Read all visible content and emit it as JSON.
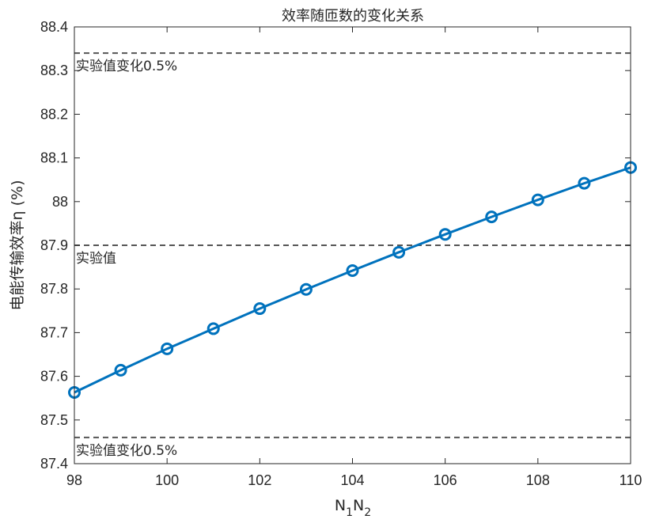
{
  "chart_data": {
    "type": "line",
    "title": "效率随匝数的变化关系",
    "xlabel": "N",
    "xlabel_subscripts": [
      "1",
      "2"
    ],
    "ylabel": "电能传输效率η (%)",
    "xlim": [
      98,
      110
    ],
    "ylim": [
      87.4,
      88.4
    ],
    "x_ticks": [
      98,
      100,
      102,
      104,
      106,
      108,
      110
    ],
    "x_tick_labels": [
      "98",
      "100",
      "102",
      "104",
      "106",
      "108",
      "110"
    ],
    "y_ticks": [
      87.4,
      87.5,
      87.6,
      87.7,
      87.8,
      87.9,
      88,
      88.1,
      88.2,
      88.3,
      88.4
    ],
    "y_tick_labels": [
      "87.4",
      "87.5",
      "87.6",
      "87.7",
      "87.8",
      "87.9",
      "88",
      "88.1",
      "88.2",
      "88.3",
      "88.4"
    ],
    "grid": false,
    "series": [
      {
        "color": "#0072BD",
        "marker": "circle",
        "x": [
          98,
          99,
          100,
          101,
          102,
          103,
          104,
          105,
          106,
          107,
          108,
          109,
          110
        ],
        "y": [
          87.563,
          87.614,
          87.663,
          87.709,
          87.755,
          87.799,
          87.842,
          87.884,
          87.925,
          87.965,
          88.004,
          88.042,
          88.078
        ]
      }
    ],
    "reference_lines": [
      {
        "y": 88.34,
        "label": "实验值变化0.5%",
        "style": "dashed",
        "color": "#555555"
      },
      {
        "y": 87.9,
        "label": "实验值",
        "style": "dashed",
        "color": "#555555"
      },
      {
        "y": 87.46,
        "label": "实验值变化0.5%",
        "style": "dashed",
        "color": "#555555"
      }
    ]
  }
}
